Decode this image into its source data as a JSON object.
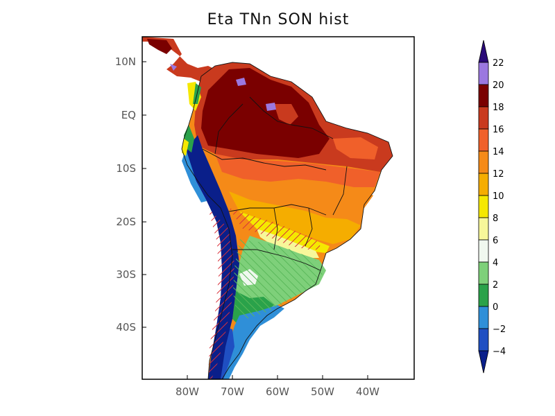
{
  "title": "Eta TNn SON hist",
  "lat_ticks": [
    "10N",
    "EQ",
    "10S",
    "20S",
    "30S",
    "40S"
  ],
  "lon_ticks": [
    "80W",
    "70W",
    "60W",
    "50W",
    "40W"
  ],
  "colorbar": {
    "labels": [
      "22",
      "20",
      "18",
      "16",
      "14",
      "12",
      "10",
      "8",
      "6",
      "4",
      "2",
      "0",
      "−2",
      "−4"
    ],
    "colors": [
      "#2a0a78",
      "#9b78e0",
      "#7a0000",
      "#c93a1e",
      "#f0602a",
      "#f58a18",
      "#f5ad00",
      "#f5e800",
      "#f7f79a",
      "#f0f8ef",
      "#7ed07a",
      "#2aa24a",
      "#2f8fd8",
      "#1f4fc2",
      "#0a1f8a"
    ]
  }
}
